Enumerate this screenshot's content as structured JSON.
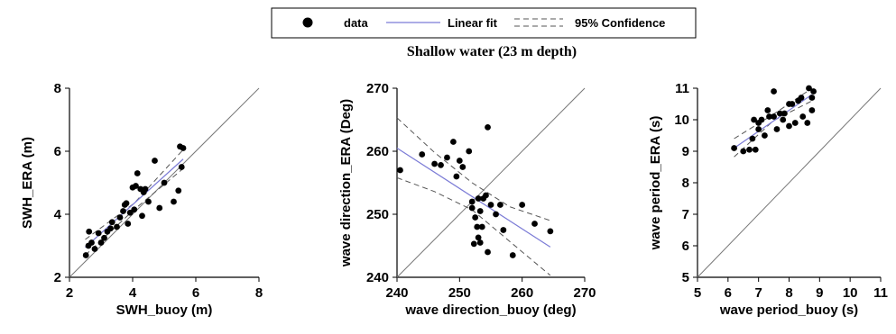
{
  "legend": {
    "items": [
      {
        "label": "data",
        "kind": "marker"
      },
      {
        "label": "Linear fit",
        "kind": "line",
        "color": "#7b7bd6"
      },
      {
        "label": "95% Confidence",
        "kind": "dashed",
        "color": "#555555"
      }
    ]
  },
  "subtitle": "Shallow water (23 m depth)",
  "chart_data": [
    {
      "type": "scatter",
      "xlabel": "SWH_buoy (m)",
      "ylabel": "SWH_ERA (m)",
      "xlim": [
        2,
        8
      ],
      "ylim": [
        2,
        8
      ],
      "xticks": [
        2,
        4,
        6,
        8
      ],
      "yticks": [
        2,
        4,
        6,
        8
      ],
      "one_to_one_line": true,
      "fit": {
        "x": [
          2.5,
          5.6
        ],
        "y": [
          2.95,
          5.75
        ]
      },
      "conf_upper": {
        "x": [
          2.5,
          4.05,
          5.6
        ],
        "y": [
          3.2,
          4.35,
          6.05
        ]
      },
      "conf_lower": {
        "x": [
          2.5,
          4.05,
          5.6
        ],
        "y": [
          2.7,
          4.15,
          5.45
        ]
      },
      "points": [
        [
          2.52,
          2.7
        ],
        [
          2.6,
          3.0
        ],
        [
          2.62,
          3.45
        ],
        [
          2.7,
          3.1
        ],
        [
          2.8,
          2.9
        ],
        [
          2.92,
          3.4
        ],
        [
          3.0,
          3.1
        ],
        [
          3.1,
          3.25
        ],
        [
          3.2,
          3.45
        ],
        [
          3.3,
          3.55
        ],
        [
          3.35,
          3.75
        ],
        [
          3.5,
          3.6
        ],
        [
          3.6,
          3.9
        ],
        [
          3.7,
          4.1
        ],
        [
          3.75,
          4.3
        ],
        [
          3.8,
          4.35
        ],
        [
          3.85,
          3.7
        ],
        [
          3.92,
          4.05
        ],
        [
          4.0,
          4.85
        ],
        [
          4.05,
          4.15
        ],
        [
          4.1,
          4.9
        ],
        [
          4.15,
          5.3
        ],
        [
          4.25,
          4.8
        ],
        [
          4.3,
          3.95
        ],
        [
          4.35,
          4.7
        ],
        [
          4.4,
          4.8
        ],
        [
          4.5,
          4.4
        ],
        [
          4.7,
          5.7
        ],
        [
          4.85,
          4.2
        ],
        [
          5.0,
          5.0
        ],
        [
          5.3,
          4.4
        ],
        [
          5.45,
          4.75
        ],
        [
          5.5,
          6.15
        ],
        [
          5.55,
          5.5
        ],
        [
          5.6,
          6.1
        ]
      ]
    },
    {
      "type": "scatter",
      "xlabel": "wave direction_buoy (deg)",
      "ylabel": "wave direction_ERA (Deg)",
      "xlim": [
        240,
        270
      ],
      "ylim": [
        240,
        270
      ],
      "xticks": [
        240,
        250,
        260,
        270
      ],
      "yticks": [
        240,
        250,
        260,
        270
      ],
      "one_to_one_line": true,
      "fit": {
        "x": [
          240,
          264.5
        ],
        "y": [
          260.5,
          244.8
        ]
      },
      "conf_upper": {
        "x": [
          240,
          246,
          252,
          258,
          264.5
        ],
        "y": [
          265.3,
          259.8,
          255.0,
          251.2,
          249.0
        ]
      },
      "conf_lower": {
        "x": [
          240,
          246,
          252,
          258,
          264.5
        ],
        "y": [
          255.8,
          253.6,
          250.7,
          245.7,
          240.3
        ]
      },
      "points": [
        [
          240.5,
          257.0
        ],
        [
          244.0,
          259.5
        ],
        [
          246.0,
          258.0
        ],
        [
          247.0,
          257.8
        ],
        [
          248.0,
          259.0
        ],
        [
          249.0,
          261.5
        ],
        [
          249.5,
          256.0
        ],
        [
          250.0,
          258.5
        ],
        [
          250.5,
          257.5
        ],
        [
          251.5,
          260.0
        ],
        [
          252.0,
          252.0
        ],
        [
          252.0,
          251.0
        ],
        [
          252.3,
          245.3
        ],
        [
          252.5,
          249.5
        ],
        [
          252.8,
          248.0
        ],
        [
          253.0,
          252.5
        ],
        [
          253.0,
          246.3
        ],
        [
          253.3,
          250.5
        ],
        [
          253.3,
          245.5
        ],
        [
          253.6,
          248.0
        ],
        [
          253.8,
          252.5
        ],
        [
          254.2,
          253.0
        ],
        [
          254.5,
          263.8
        ],
        [
          254.5,
          244.0
        ],
        [
          255.0,
          251.5
        ],
        [
          255.8,
          250.0
        ],
        [
          256.5,
          251.5
        ],
        [
          257.0,
          247.5
        ],
        [
          258.5,
          243.5
        ],
        [
          260.0,
          251.5
        ],
        [
          262.0,
          248.5
        ],
        [
          264.5,
          247.3
        ]
      ]
    },
    {
      "type": "scatter",
      "xlabel": "wave period_buoy (s)",
      "ylabel": "wave period_ERA (s)",
      "xlim": [
        5,
        11
      ],
      "ylim": [
        5,
        11
      ],
      "xticks": [
        5,
        6,
        7,
        8,
        9,
        10,
        11
      ],
      "yticks": [
        5,
        6,
        7,
        8,
        9,
        10,
        11
      ],
      "one_to_one_line": true,
      "fit": {
        "x": [
          6.2,
          8.75
        ],
        "y": [
          9.1,
          10.8
        ]
      },
      "conf_upper": {
        "x": [
          6.2,
          7.5,
          8.75
        ],
        "y": [
          9.4,
          10.18,
          11.0
        ]
      },
      "conf_lower": {
        "x": [
          6.2,
          7.5,
          8.75
        ],
        "y": [
          8.82,
          9.98,
          10.6
        ]
      },
      "points": [
        [
          6.2,
          9.1
        ],
        [
          6.5,
          9.0
        ],
        [
          6.7,
          9.05
        ],
        [
          6.8,
          9.4
        ],
        [
          6.85,
          10.0
        ],
        [
          6.9,
          9.05
        ],
        [
          7.0,
          9.7
        ],
        [
          7.0,
          9.9
        ],
        [
          7.1,
          10.0
        ],
        [
          7.2,
          9.5
        ],
        [
          7.3,
          10.3
        ],
        [
          7.35,
          10.1
        ],
        [
          7.5,
          10.9
        ],
        [
          7.5,
          10.1
        ],
        [
          7.6,
          9.7
        ],
        [
          7.7,
          10.2
        ],
        [
          7.8,
          10.0
        ],
        [
          7.85,
          10.2
        ],
        [
          8.0,
          10.5
        ],
        [
          8.0,
          9.8
        ],
        [
          8.1,
          10.5
        ],
        [
          8.2,
          9.9
        ],
        [
          8.3,
          10.6
        ],
        [
          8.4,
          10.7
        ],
        [
          8.45,
          10.1
        ],
        [
          8.6,
          9.9
        ],
        [
          8.65,
          11.0
        ],
        [
          8.75,
          10.3
        ],
        [
          8.8,
          10.9
        ],
        [
          8.75,
          10.7
        ]
      ]
    }
  ]
}
